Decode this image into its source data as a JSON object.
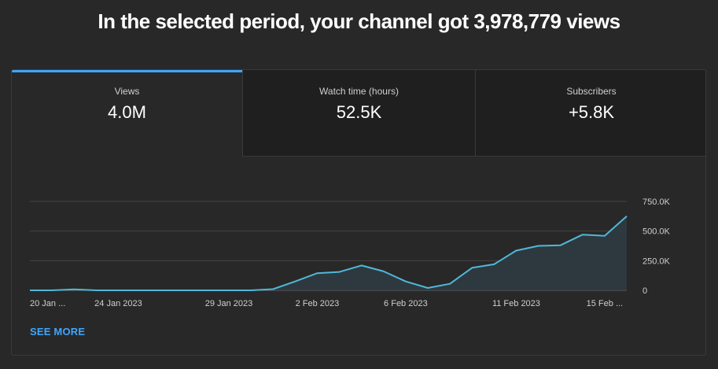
{
  "headline": "In the selected period, your channel got 3,978,779 views",
  "tabs": [
    {
      "label": "Views",
      "value": "4.0M",
      "active": true
    },
    {
      "label": "Watch time (hours)",
      "value": "52.5K",
      "active": false
    },
    {
      "label": "Subscribers",
      "value": "+5.8K",
      "active": false
    }
  ],
  "see_more": "SEE MORE",
  "colors": {
    "accent": "#3ea6ff",
    "line": "#4fb8d9",
    "fill": "#2f3b41"
  },
  "chart_data": {
    "type": "area",
    "x": [
      "20 Jan 2023",
      "21 Jan 2023",
      "22 Jan 2023",
      "23 Jan 2023",
      "24 Jan 2023",
      "25 Jan 2023",
      "26 Jan 2023",
      "27 Jan 2023",
      "28 Jan 2023",
      "29 Jan 2023",
      "30 Jan 2023",
      "31 Jan 2023",
      "1 Feb 2023",
      "2 Feb 2023",
      "3 Feb 2023",
      "4 Feb 2023",
      "5 Feb 2023",
      "6 Feb 2023",
      "7 Feb 2023",
      "8 Feb 2023",
      "9 Feb 2023",
      "10 Feb 2023",
      "11 Feb 2023",
      "12 Feb 2023",
      "13 Feb 2023",
      "14 Feb 2023",
      "15 Feb 2023",
      "16 Feb 2023"
    ],
    "series": [
      {
        "values": [
          0,
          0,
          8000,
          0,
          0,
          0,
          0,
          0,
          0,
          0,
          0,
          10000,
          75000,
          145000,
          155000,
          210000,
          160000,
          75000,
          20000,
          55000,
          190000,
          220000,
          335000,
          375000,
          380000,
          470000,
          460000,
          625000
        ]
      }
    ],
    "x_tick_labels": [
      {
        "index": 0,
        "label": "20 Jan ..."
      },
      {
        "index": 4,
        "label": "24 Jan 2023"
      },
      {
        "index": 9,
        "label": "29 Jan 2023"
      },
      {
        "index": 13,
        "label": "2 Feb 2023"
      },
      {
        "index": 17,
        "label": "6 Feb 2023"
      },
      {
        "index": 22,
        "label": "11 Feb 2023"
      },
      {
        "index": 26,
        "label": "15 Feb ..."
      }
    ],
    "y_ticks": [
      {
        "value": 0,
        "label": "0"
      },
      {
        "value": 250000,
        "label": "250.0K"
      },
      {
        "value": 500000,
        "label": "500.0K"
      },
      {
        "value": 750000,
        "label": "750.0K"
      }
    ],
    "ylim": [
      0,
      750000
    ],
    "grid": true
  }
}
